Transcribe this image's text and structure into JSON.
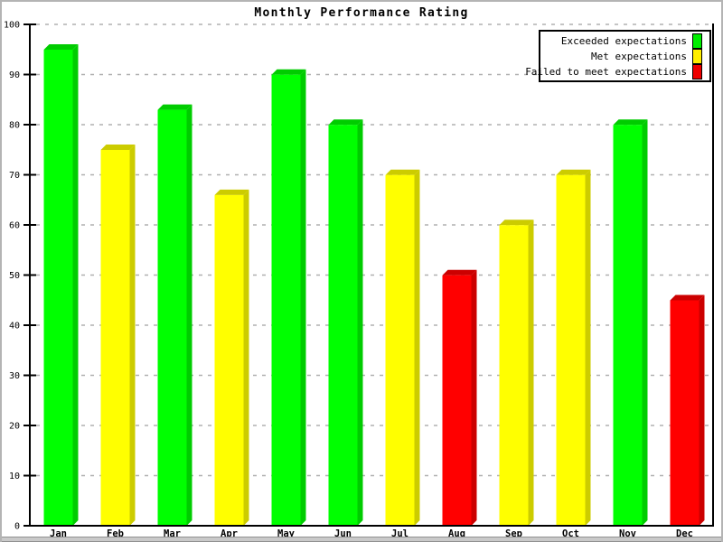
{
  "title": "Monthly Performance Rating",
  "legend": {
    "items": [
      {
        "label": "Exceeded expectations",
        "color": "#00ee00",
        "rating": "exceeded"
      },
      {
        "label": "Met expectations",
        "color": "#ffee00",
        "rating": "met"
      },
      {
        "label": "Failed to meet expectations",
        "color": "#ee0000",
        "rating": "failed"
      }
    ]
  },
  "chart_data": {
    "type": "bar",
    "title": "Monthly Performance Rating",
    "categories": [
      "Jan",
      "Feb",
      "Mar",
      "Apr",
      "May",
      "Jun",
      "Jul",
      "Aug",
      "Sep",
      "Oct",
      "Nov",
      "Dec"
    ],
    "values": [
      95.5,
      75.5,
      83.5,
      66.5,
      90.5,
      80.5,
      70.5,
      50.5,
      60.5,
      70.5,
      80.5,
      45.5
    ],
    "bar_ratings": [
      "exceeded",
      "met",
      "exceeded",
      "met",
      "exceeded",
      "exceeded",
      "met",
      "failed",
      "met",
      "met",
      "exceeded",
      "failed"
    ],
    "rating_colors": {
      "exceeded": {
        "front": "#00ff00",
        "shade": "#00cc00"
      },
      "met": {
        "front": "#ffff00",
        "shade": "#cccc00"
      },
      "failed": {
        "front": "#ff0000",
        "shade": "#cc0000"
      }
    },
    "xlabel": "",
    "ylabel": "",
    "ylim": [
      0,
      100
    ],
    "ytick_step": 10,
    "grid": "horizontal-dashed",
    "grid_color": "#b0b0b0",
    "legend_position": "top-right",
    "legend_entries": [
      "Exceeded expectations",
      "Met expectations",
      "Failed to meet expectations"
    ]
  }
}
